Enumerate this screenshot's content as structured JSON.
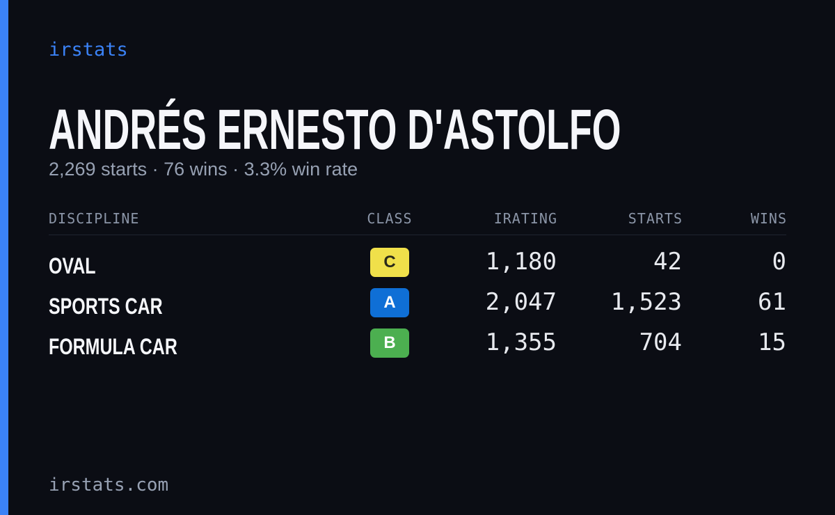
{
  "brand": "irstats",
  "driver": {
    "name": "ANDRÉS ERNESTO D'ASTOLFO",
    "summary": "2,269 starts · 76 wins · 3.3% win rate"
  },
  "table": {
    "headers": [
      "DISCIPLINE",
      "CLASS",
      "IRATING",
      "STARTS",
      "WINS"
    ],
    "rows": [
      {
        "discipline": "OVAL",
        "class": "C",
        "class_color": "#f0e04a",
        "class_text_color": "#2a2a1a",
        "irating": "1,180",
        "starts": "42",
        "wins": "0"
      },
      {
        "discipline": "SPORTS CAR",
        "class": "A",
        "class_color": "#0f6fd6",
        "class_text_color": "#ffffff",
        "irating": "2,047",
        "starts": "1,523",
        "wins": "61"
      },
      {
        "discipline": "FORMULA CAR",
        "class": "B",
        "class_color": "#4caf50",
        "class_text_color": "#ffffff",
        "irating": "1,355",
        "starts": "704",
        "wins": "15"
      }
    ]
  },
  "footer": "irstats.com"
}
